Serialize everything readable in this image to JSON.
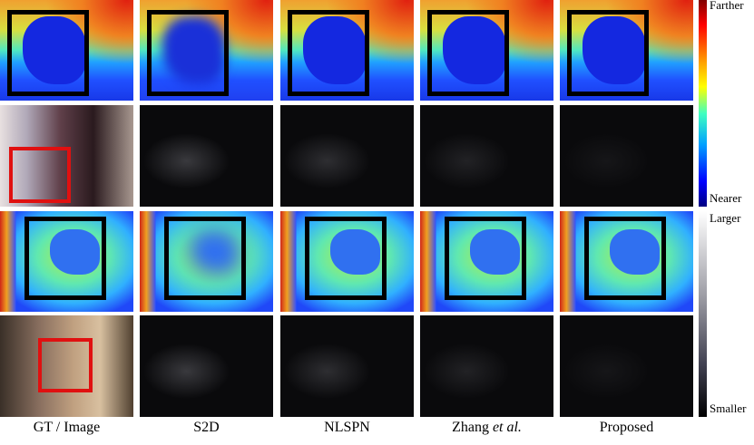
{
  "columns": [
    {
      "label": "GT / Image"
    },
    {
      "label": "S2D"
    },
    {
      "label": "NLSPN"
    },
    {
      "label": "Zhang",
      "suffix": "et al."
    },
    {
      "label": "Proposed"
    }
  ],
  "colorbars": [
    {
      "top": "Farther",
      "bottom": "Nearer"
    },
    {
      "top": "Larger",
      "bottom": "Smaller"
    }
  ]
}
